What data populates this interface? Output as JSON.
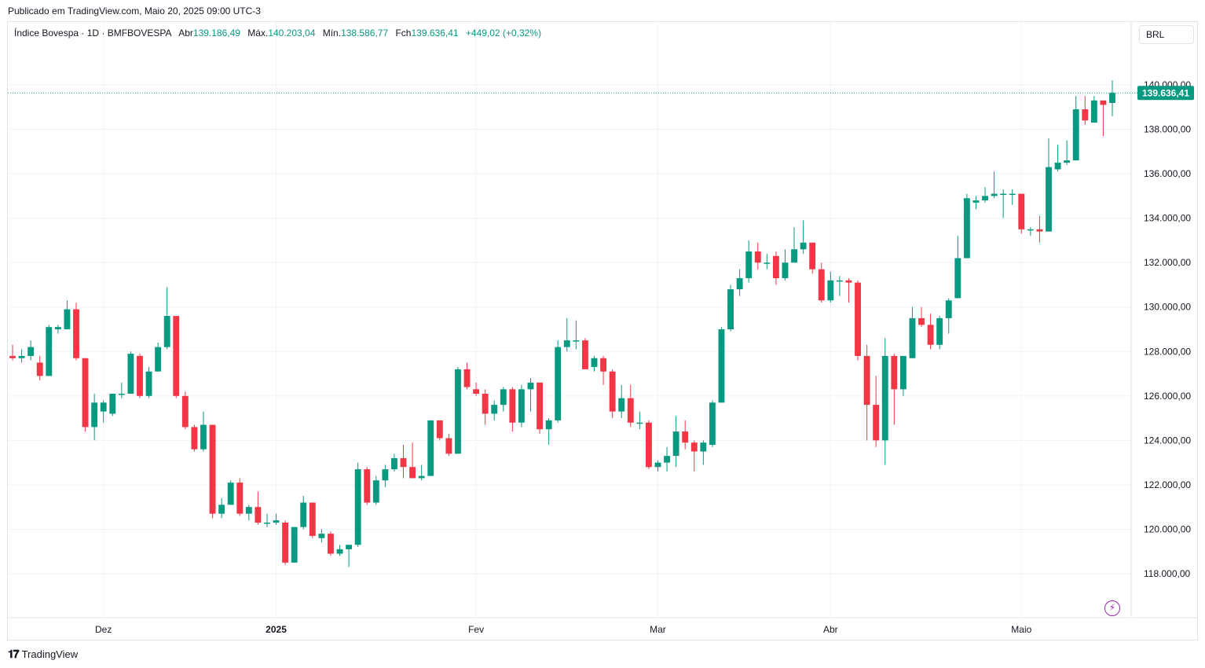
{
  "header": {
    "published": "Publicado em TradingView.com, Maio 20, 2025 09:00 UTC-3"
  },
  "legend": {
    "symbol": "Índice Bovespa · 1D · BMFBOVESPA",
    "open_label": "Abr",
    "open": "139.186,49",
    "high_label": "Máx.",
    "high": "140.203,04",
    "low_label": "Mín.",
    "low": "138.586,77",
    "close_label": "Fch",
    "close": "139.636,41",
    "change": "+449,02 (+0,32%)"
  },
  "currency": "BRL",
  "last_price_label": "139.636,41",
  "footer": {
    "brand": "TradingView",
    "brand_icon": "tradingview-logo-icon"
  },
  "colors": {
    "up": "#089981",
    "down": "#f23645",
    "grid": "#f0f3fa",
    "axis_text": "#131722",
    "price_tag": "#089981"
  },
  "chart_data": {
    "type": "candlestick",
    "ylim": [
      116500,
      141500
    ],
    "grid": true,
    "y_ticks": [
      {
        "value": 140000,
        "label": "140.000,00"
      },
      {
        "value": 138000,
        "label": "138.000,00"
      },
      {
        "value": 136000,
        "label": "136.000,00"
      },
      {
        "value": 134000,
        "label": "134.000,00"
      },
      {
        "value": 132000,
        "label": "132.000,00"
      },
      {
        "value": 130000,
        "label": "130.000,00"
      },
      {
        "value": 128000,
        "label": "128.000,00"
      },
      {
        "value": 126000,
        "label": "126.000,00"
      },
      {
        "value": 124000,
        "label": "124.000,00"
      },
      {
        "value": 122000,
        "label": "122.000,00"
      },
      {
        "value": 120000,
        "label": "120.000,00"
      },
      {
        "value": 118000,
        "label": "118.000,00"
      }
    ],
    "x_ticks": [
      {
        "index": 10,
        "label": "Dez",
        "bold": false
      },
      {
        "index": 29,
        "label": "2025",
        "bold": true
      },
      {
        "index": 51,
        "label": "Fev",
        "bold": false
      },
      {
        "index": 71,
        "label": "Mar",
        "bold": false
      },
      {
        "index": 90,
        "label": "Abr",
        "bold": false
      },
      {
        "index": 111,
        "label": "Maio",
        "bold": false
      }
    ],
    "last_price": 139636.41,
    "ohlc": [
      [
        127800,
        128300,
        127600,
        127700
      ],
      [
        127700,
        128100,
        127500,
        127800
      ],
      [
        127800,
        128500,
        127600,
        128200
      ],
      [
        127500,
        127800,
        126700,
        126900
      ],
      [
        126900,
        129200,
        126900,
        129100
      ],
      [
        129000,
        129200,
        128800,
        129100
      ],
      [
        129000,
        130300,
        129000,
        129900
      ],
      [
        129900,
        130200,
        127600,
        127700
      ],
      [
        127700,
        127700,
        124400,
        124600
      ],
      [
        124600,
        126100,
        124000,
        125700
      ],
      [
        125300,
        125800,
        124800,
        125700
      ],
      [
        125200,
        126000,
        125100,
        126100
      ],
      [
        126100,
        126600,
        125900,
        126100
      ],
      [
        126100,
        128000,
        126100,
        127900
      ],
      [
        127800,
        127900,
        125900,
        126000
      ],
      [
        126000,
        127300,
        125900,
        127100
      ],
      [
        127100,
        128400,
        127100,
        128200
      ],
      [
        128200,
        130900,
        128100,
        129600
      ],
      [
        129600,
        129600,
        125900,
        126000
      ],
      [
        126000,
        126200,
        124500,
        124600
      ],
      [
        124600,
        124700,
        123500,
        123600
      ],
      [
        123600,
        125300,
        123500,
        124700
      ],
      [
        124700,
        124700,
        120500,
        120700
      ],
      [
        120700,
        121400,
        120500,
        121100
      ],
      [
        121100,
        122200,
        121100,
        122100
      ],
      [
        122100,
        122300,
        120600,
        120700
      ],
      [
        120700,
        121100,
        120400,
        121000
      ],
      [
        121000,
        121700,
        120200,
        120300
      ],
      [
        120300,
        120700,
        120100,
        120300
      ],
      [
        120300,
        120700,
        120200,
        120400
      ],
      [
        120300,
        120400,
        118400,
        118500
      ],
      [
        118500,
        120100,
        118500,
        120100
      ],
      [
        120100,
        121500,
        120000,
        121200
      ],
      [
        121200,
        121200,
        119600,
        119700
      ],
      [
        119600,
        120000,
        119400,
        119800
      ],
      [
        119800,
        119900,
        118800,
        118900
      ],
      [
        118900,
        119300,
        118800,
        119100
      ],
      [
        119100,
        119200,
        118300,
        119300
      ],
      [
        119300,
        123000,
        119200,
        122700
      ],
      [
        122700,
        122800,
        121100,
        121200
      ],
      [
        121200,
        122400,
        121100,
        122200
      ],
      [
        122200,
        122900,
        121900,
        122700
      ],
      [
        122700,
        123400,
        122600,
        123200
      ],
      [
        123200,
        123800,
        122300,
        122800
      ],
      [
        122800,
        123900,
        122300,
        122300
      ],
      [
        122300,
        122900,
        122200,
        122400
      ],
      [
        122400,
        124900,
        122400,
        124900
      ],
      [
        124900,
        124900,
        124000,
        124100
      ],
      [
        124100,
        124300,
        123300,
        123400
      ],
      [
        123400,
        127300,
        123400,
        127200
      ],
      [
        127200,
        127500,
        126300,
        126400
      ],
      [
        126300,
        126600,
        126000,
        126100
      ],
      [
        126100,
        126300,
        124700,
        125200
      ],
      [
        125200,
        125800,
        124900,
        125600
      ],
      [
        125600,
        126400,
        125300,
        126300
      ],
      [
        126300,
        126400,
        124400,
        124800
      ],
      [
        124800,
        126500,
        124600,
        126300
      ],
      [
        126300,
        126800,
        125300,
        126600
      ],
      [
        126600,
        126600,
        124300,
        124500
      ],
      [
        124500,
        125000,
        123800,
        124900
      ],
      [
        124900,
        128500,
        124800,
        128200
      ],
      [
        128200,
        129500,
        128000,
        128500
      ],
      [
        128500,
        129400,
        128100,
        128500
      ],
      [
        128500,
        128600,
        127200,
        127200
      ],
      [
        127300,
        127800,
        127100,
        127700
      ],
      [
        127700,
        127800,
        126500,
        127100
      ],
      [
        127100,
        127200,
        125000,
        125300
      ],
      [
        125300,
        126500,
        125000,
        125900
      ],
      [
        125900,
        126500,
        124600,
        124800
      ],
      [
        124800,
        125300,
        124500,
        124800
      ],
      [
        124800,
        124900,
        122700,
        122800
      ],
      [
        122800,
        123100,
        122600,
        123000
      ],
      [
        123000,
        123700,
        122600,
        123300
      ],
      [
        123300,
        125100,
        122800,
        124400
      ],
      [
        124400,
        124900,
        123600,
        123900
      ],
      [
        123900,
        124000,
        122600,
        123500
      ],
      [
        123500,
        124000,
        122900,
        123900
      ],
      [
        123800,
        125800,
        123700,
        125700
      ],
      [
        125700,
        129100,
        125700,
        129000
      ],
      [
        129000,
        131000,
        128900,
        130800
      ],
      [
        130800,
        131700,
        130500,
        131300
      ],
      [
        131300,
        133000,
        131100,
        132500
      ],
      [
        132500,
        132900,
        131700,
        132000
      ],
      [
        132000,
        132400,
        131700,
        132000
      ],
      [
        132300,
        132500,
        131000,
        131300
      ],
      [
        131300,
        132600,
        131200,
        132000
      ],
      [
        132000,
        133600,
        132000,
        132600
      ],
      [
        132600,
        133900,
        132400,
        132900
      ],
      [
        132900,
        132900,
        131500,
        131700
      ],
      [
        131700,
        132000,
        130200,
        130300
      ],
      [
        130300,
        131600,
        130200,
        131200
      ],
      [
        131200,
        131400,
        130500,
        131200
      ],
      [
        131200,
        131300,
        130200,
        131100
      ],
      [
        131100,
        131200,
        127600,
        127800
      ],
      [
        127800,
        128300,
        124000,
        125600
      ],
      [
        125600,
        126900,
        123700,
        124000
      ],
      [
        124000,
        128600,
        122900,
        127800
      ],
      [
        127800,
        127900,
        124700,
        126300
      ],
      [
        126300,
        127800,
        126000,
        127800
      ],
      [
        127700,
        130000,
        127700,
        129500
      ],
      [
        129500,
        130000,
        129100,
        129200
      ],
      [
        129200,
        129700,
        128100,
        128300
      ],
      [
        128300,
        129600,
        128100,
        129500
      ],
      [
        129500,
        130400,
        128800,
        130300
      ],
      [
        130400,
        133200,
        130400,
        132200
      ],
      [
        132200,
        135100,
        132200,
        134900
      ],
      [
        134700,
        135000,
        134400,
        134800
      ],
      [
        134800,
        135400,
        134700,
        135000
      ],
      [
        135000,
        136100,
        134900,
        135100
      ],
      [
        135100,
        135300,
        134000,
        135100
      ],
      [
        135100,
        135300,
        134600,
        135100
      ],
      [
        135100,
        135100,
        133300,
        133500
      ],
      [
        133500,
        133600,
        133200,
        133500
      ],
      [
        133500,
        134100,
        132900,
        133400
      ],
      [
        133400,
        137600,
        133400,
        136300
      ],
      [
        136200,
        137300,
        136100,
        136500
      ],
      [
        136500,
        137500,
        136400,
        136600
      ],
      [
        136600,
        139500,
        136600,
        138900
      ],
      [
        138900,
        139500,
        138200,
        138400
      ],
      [
        138300,
        139500,
        138300,
        139300
      ],
      [
        139300,
        139300,
        137700,
        139100
      ],
      [
        139186.49,
        140203.04,
        138586.77,
        139636.41
      ]
    ]
  }
}
